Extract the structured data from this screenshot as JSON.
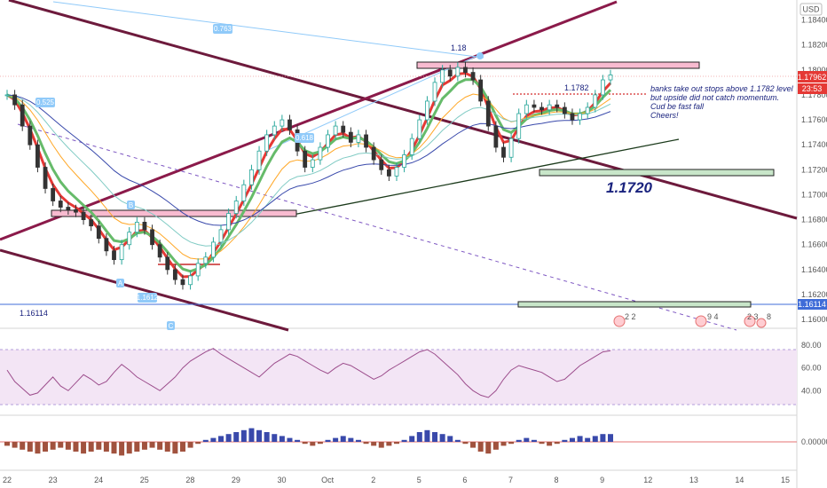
{
  "chart_data": {
    "type": "line",
    "currency": "USD",
    "price_ticks": [
      "1.18400",
      "1.18200",
      "1.18000",
      "1.17800",
      "1.17600",
      "1.17400",
      "1.17200",
      "1.17000",
      "1.16800",
      "1.16600",
      "1.16400",
      "1.16200",
      "1.16000"
    ],
    "price_range": [
      1.1593,
      1.1856
    ],
    "price_ticks_num": [
      1.184,
      1.182,
      1.18,
      1.178,
      1.176,
      1.174,
      1.172,
      1.17,
      1.168,
      1.166,
      1.164,
      1.162,
      1.16
    ],
    "last_price": "1.17962",
    "countdown": "23:53",
    "level_label": "1.16114",
    "rsi_ticks": [
      "80.00",
      "60.00",
      "40.00"
    ],
    "macd_ticks": [
      "0.00000"
    ],
    "x_labels": [
      "22",
      "23",
      "24",
      "25",
      "28",
      "29",
      "30",
      "Oct",
      "2",
      "5",
      "6",
      "7",
      "8",
      "9",
      "12",
      "13",
      "14",
      "15"
    ],
    "annotations": {
      "peak": "1.18",
      "level_1782": "1.1782",
      "level_1720": "1.1720",
      "fib_top": "0.763",
      "fib_left": "0.525",
      "fib_mid": "0.618",
      "label_b": "B",
      "label_a": "A",
      "label_c": "C",
      "label_low": "1.1612",
      "note_lines": [
        "banks take out stops above 1.1782 level",
        "but upside did not catch momentum.",
        "Cud be fast fall",
        "Cheers!"
      ]
    },
    "events": [
      {
        "label": "2 2"
      },
      {
        "label": "9 4"
      },
      {
        "label": "2 3"
      },
      {
        "label": "8"
      }
    ],
    "close_series": [
      1.178,
      1.1772,
      1.1755,
      1.174,
      1.1722,
      1.1705,
      1.1695,
      1.169,
      1.1688,
      1.1686,
      1.168,
      1.1675,
      1.1665,
      1.1655,
      1.1648,
      1.166,
      1.167,
      1.1678,
      1.1672,
      1.166,
      1.165,
      1.164,
      1.1632,
      1.1628,
      1.1635,
      1.1645,
      1.165,
      1.1662,
      1.1672,
      1.1685,
      1.1695,
      1.1708,
      1.172,
      1.1735,
      1.1748,
      1.1755,
      1.176,
      1.1752,
      1.1735,
      1.1722,
      1.1728,
      1.1738,
      1.1748,
      1.1755,
      1.175,
      1.1742,
      1.1748,
      1.1738,
      1.1728,
      1.172,
      1.1715,
      1.1722,
      1.1732,
      1.1745,
      1.176,
      1.1775,
      1.179,
      1.18,
      1.1795,
      1.1802,
      1.1798,
      1.1792,
      1.1775,
      1.1755,
      1.1738,
      1.173,
      1.1745,
      1.1765,
      1.1772,
      1.177,
      1.1768,
      1.1772,
      1.177,
      1.1765,
      1.176,
      1.1765,
      1.177,
      1.178,
      1.1792,
      1.1796
    ],
    "rsi_series": [
      58,
      48,
      42,
      36,
      38,
      45,
      52,
      44,
      40,
      47,
      54,
      50,
      45,
      48,
      56,
      63,
      58,
      52,
      48,
      44,
      40,
      46,
      52,
      60,
      66,
      70,
      74,
      77,
      72,
      68,
      64,
      60,
      56,
      52,
      58,
      64,
      68,
      72,
      70,
      66,
      62,
      58,
      55,
      60,
      64,
      62,
      58,
      54,
      50,
      53,
      58,
      62,
      66,
      70,
      74,
      76,
      72,
      66,
      60,
      54,
      46,
      40,
      36,
      34,
      40,
      50,
      58,
      62,
      60,
      58,
      56,
      52,
      48,
      50,
      56,
      62,
      66,
      70,
      74,
      75
    ],
    "macd_hist": [
      -2,
      -3,
      -4,
      -5,
      -6,
      -5,
      -4,
      -3,
      -4,
      -5,
      -6,
      -5,
      -4,
      -5,
      -6,
      -7,
      -6,
      -5,
      -4,
      -3,
      -4,
      -5,
      -6,
      -5,
      -3,
      -1,
      1,
      2,
      3,
      4,
      5,
      6,
      7,
      6,
      5,
      4,
      3,
      2,
      1,
      -1,
      -2,
      -1,
      1,
      2,
      3,
      2,
      1,
      -1,
      -2,
      -3,
      -2,
      -1,
      1,
      3,
      5,
      6,
      5,
      4,
      3,
      1,
      -1,
      -3,
      -5,
      -6,
      -4,
      -2,
      -1,
      1,
      2,
      1,
      -1,
      -2,
      -1,
      1,
      2,
      3,
      2,
      3,
      4,
      4
    ]
  }
}
